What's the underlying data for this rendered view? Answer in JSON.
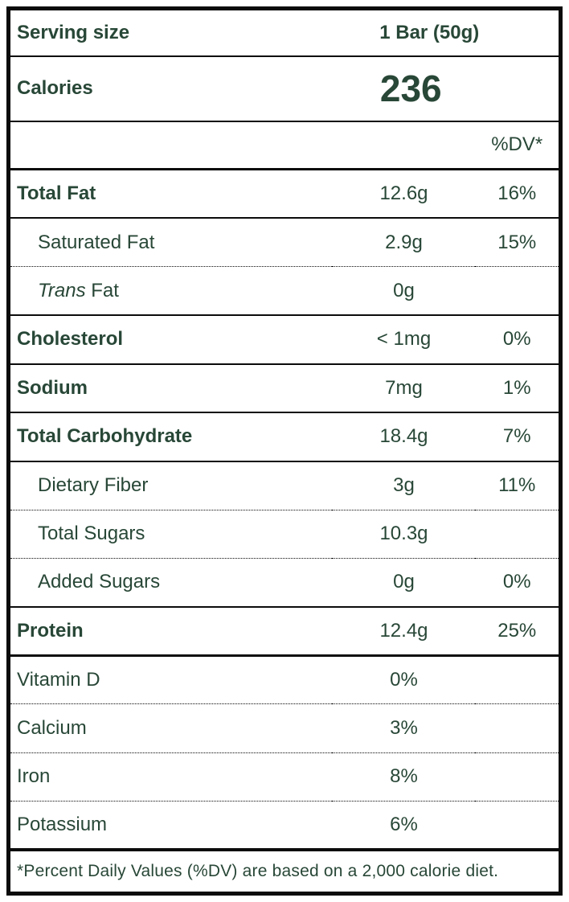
{
  "serving": {
    "label": "Serving size",
    "value": "1 Bar (50g)"
  },
  "calories": {
    "label": "Calories",
    "value": "236"
  },
  "dv_header": "%DV*",
  "rows": [
    {
      "name": "Total Fat",
      "amount": "12.6g",
      "dv": "16%"
    },
    {
      "name": "Saturated Fat",
      "amount": "2.9g",
      "dv": "15%"
    },
    {
      "name_italic": "Trans",
      "name_rest": " Fat",
      "amount": "0g",
      "dv": ""
    },
    {
      "name": "Cholesterol",
      "amount": "< 1mg",
      "dv": "0%"
    },
    {
      "name": "Sodium",
      "amount": "7mg",
      "dv": "1%"
    },
    {
      "name": "Total Carbohydrate",
      "amount": "18.4g",
      "dv": "7%"
    },
    {
      "name": "Dietary Fiber",
      "amount": "3g",
      "dv": "11%"
    },
    {
      "name": "Total Sugars",
      "amount": "10.3g",
      "dv": ""
    },
    {
      "name": "Added Sugars",
      "amount": "0g",
      "dv": "0%"
    },
    {
      "name": "Protein",
      "amount": "12.4g",
      "dv": "25%"
    },
    {
      "name": "Vitamin D",
      "amount": "0%",
      "dv": ""
    },
    {
      "name": "Calcium",
      "amount": "3%",
      "dv": ""
    },
    {
      "name": "Iron",
      "amount": "8%",
      "dv": ""
    },
    {
      "name": "Potassium",
      "amount": "6%",
      "dv": ""
    }
  ],
  "footnote": "*Percent Daily Values (%DV) are based on a 2,000 calorie diet.",
  "colors": {
    "text_green": "#284737",
    "line_black": "#0b0b0b",
    "background": "#ffffff"
  }
}
